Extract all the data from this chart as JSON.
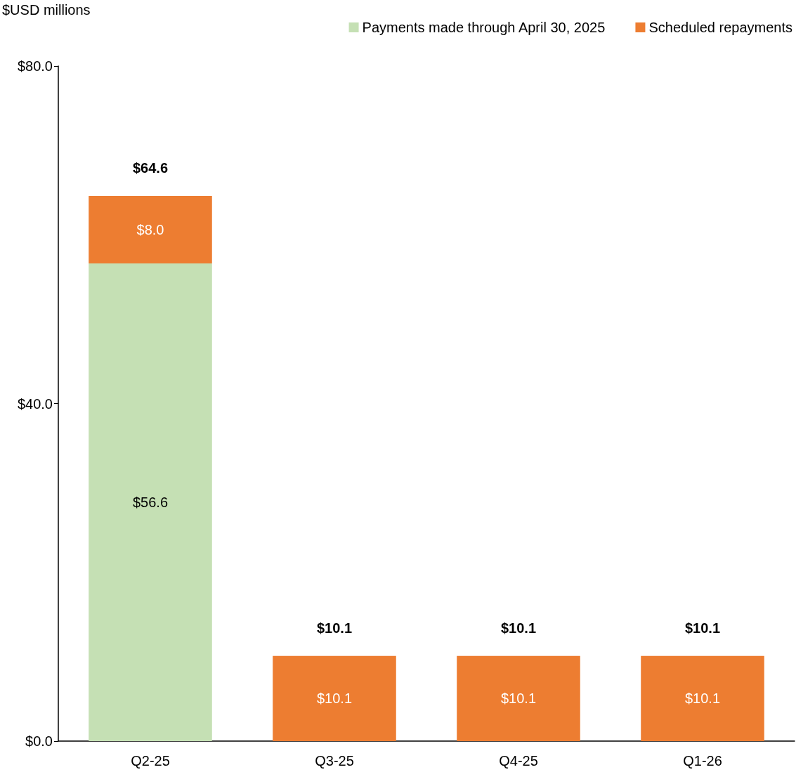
{
  "chart_data": {
    "type": "bar",
    "stacked": true,
    "ylabel": "$USD millions",
    "categories": [
      "Q2-25",
      "Q3-25",
      "Q4-25",
      "Q1-26"
    ],
    "series": [
      {
        "name": "Payments made through April 30, 2025",
        "color": "#c5e0b4",
        "values": [
          56.6,
          null,
          null,
          null
        ],
        "value_labels": [
          "$56.6",
          null,
          null,
          null
        ]
      },
      {
        "name": "Scheduled repayments",
        "color": "#ed7d31",
        "values": [
          8.0,
          10.1,
          10.1,
          10.1
        ],
        "value_labels": [
          "$8.0",
          "$10.1",
          "$10.1",
          "$10.1"
        ]
      }
    ],
    "totals": [
      "$64.6",
      "$10.1",
      "$10.1",
      "$10.1"
    ],
    "ylim": [
      0,
      80
    ],
    "yticks": [
      {
        "value": 0,
        "label": "$0.0"
      },
      {
        "value": 40,
        "label": "$40.0"
      },
      {
        "value": 80,
        "label": "$80.0"
      }
    ],
    "grid": false,
    "legend": "top right"
  }
}
